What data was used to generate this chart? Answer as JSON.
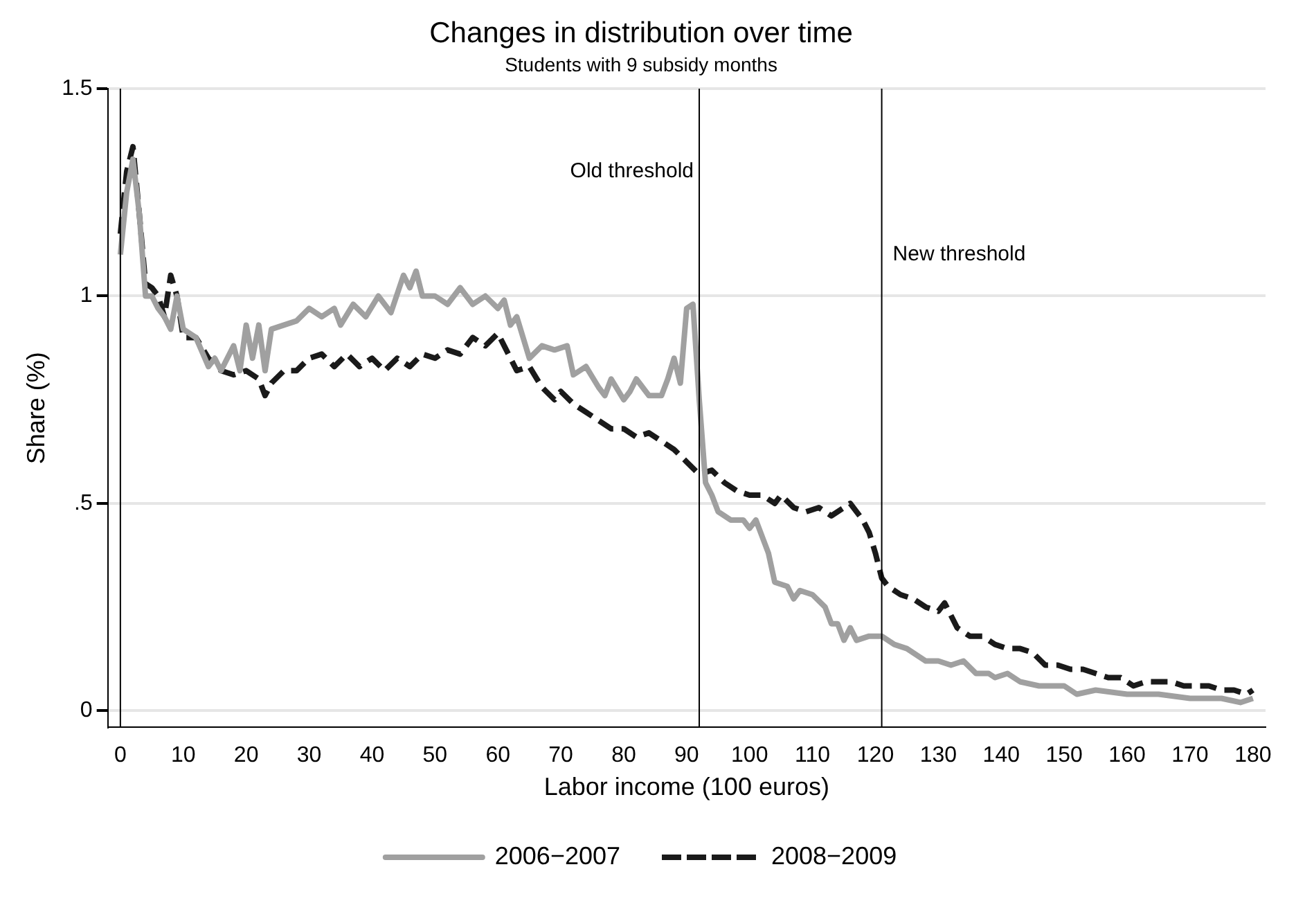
{
  "chart_data": {
    "type": "line",
    "title": "Changes in distribution over time",
    "subtitle": "Students with 9 subsidy months",
    "xlabel": "Labor income (100 euros)",
    "ylabel": "Share (%)",
    "xlim": [
      -2,
      182
    ],
    "xticks": [
      0,
      10,
      20,
      30,
      40,
      50,
      60,
      70,
      80,
      90,
      100,
      110,
      120,
      130,
      140,
      150,
      160,
      170,
      180
    ],
    "ylim": [
      -0.04,
      1.5
    ],
    "yticks": [
      0,
      {
        "value": 0.5,
        "label": ".5"
      },
      1,
      1.5
    ],
    "grid": "y",
    "legend": "bottom",
    "ref_lines": [
      {
        "axis": "x",
        "value": 0,
        "color": "#000000"
      },
      {
        "axis": "x",
        "value": 92,
        "label": "Old threshold",
        "color": "#000000"
      },
      {
        "axis": "x",
        "value": 121,
        "label": "New threshold",
        "color": "#000000"
      }
    ],
    "series": [
      {
        "name": "2006−2007",
        "color": "#a0a0a0",
        "line_style": "solid",
        "x": [
          0,
          1,
          2,
          3,
          4,
          5,
          6,
          7,
          8,
          9,
          10,
          12,
          14,
          15,
          16,
          18,
          19,
          20,
          21,
          22,
          23,
          24,
          26,
          28,
          30,
          32,
          34,
          35,
          37,
          39,
          41,
          43,
          45,
          46,
          47,
          48,
          50,
          52,
          54,
          56,
          58,
          60,
          61,
          62,
          63,
          65,
          67,
          69,
          71,
          72,
          74,
          76,
          77,
          78,
          80,
          81,
          82,
          84,
          86,
          87,
          88,
          89,
          90,
          91,
          92,
          93,
          94,
          95,
          97,
          99,
          100,
          101,
          103,
          104,
          106,
          107,
          108,
          110,
          112,
          113,
          114,
          115,
          116,
          117,
          119,
          121,
          123,
          125,
          127,
          128,
          130,
          132,
          134,
          136,
          138,
          139,
          141,
          143,
          146,
          150,
          152,
          155,
          160,
          165,
          170,
          175,
          178,
          180
        ],
        "values": [
          1.1,
          1.25,
          1.33,
          1.2,
          1.0,
          1.0,
          0.97,
          0.95,
          0.92,
          1.0,
          0.92,
          0.9,
          0.83,
          0.85,
          0.82,
          0.88,
          0.82,
          0.93,
          0.85,
          0.93,
          0.82,
          0.92,
          0.93,
          0.94,
          0.97,
          0.95,
          0.97,
          0.93,
          0.98,
          0.95,
          1.0,
          0.96,
          1.05,
          1.02,
          1.06,
          1.0,
          1.0,
          0.98,
          1.02,
          0.98,
          1.0,
          0.97,
          0.99,
          0.93,
          0.95,
          0.85,
          0.88,
          0.87,
          0.88,
          0.81,
          0.83,
          0.78,
          0.76,
          0.8,
          0.75,
          0.77,
          0.8,
          0.76,
          0.76,
          0.8,
          0.85,
          0.79,
          0.97,
          0.98,
          0.75,
          0.55,
          0.52,
          0.48,
          0.46,
          0.46,
          0.44,
          0.46,
          0.38,
          0.31,
          0.3,
          0.27,
          0.29,
          0.28,
          0.25,
          0.21,
          0.21,
          0.17,
          0.2,
          0.17,
          0.18,
          0.18,
          0.16,
          0.15,
          0.13,
          0.12,
          0.12,
          0.11,
          0.12,
          0.09,
          0.09,
          0.08,
          0.09,
          0.07,
          0.06,
          0.06,
          0.04,
          0.05,
          0.04,
          0.04,
          0.03,
          0.03,
          0.02,
          0.03
        ]
      },
      {
        "name": "2008−2009",
        "color": "#1a1a1a",
        "line_style": "dashed",
        "x": [
          0,
          1,
          2,
          3,
          4,
          5,
          6,
          7,
          8,
          9,
          10,
          12,
          14,
          16,
          18,
          20,
          22,
          23,
          24,
          26,
          28,
          30,
          32,
          34,
          36,
          38,
          40,
          42,
          44,
          46,
          48,
          50,
          52,
          54,
          56,
          58,
          60,
          61,
          63,
          65,
          67,
          69,
          70,
          72,
          74,
          76,
          78,
          80,
          82,
          84,
          86,
          88,
          90,
          92,
          94,
          96,
          98,
          100,
          102,
          104,
          105,
          107,
          109,
          111,
          113,
          115,
          116,
          118,
          119,
          120,
          121,
          122,
          124,
          126,
          128,
          130,
          131,
          133,
          135,
          137,
          139,
          141,
          143,
          145,
          147,
          149,
          151,
          153,
          155,
          157,
          159,
          161,
          163,
          165,
          167,
          169,
          171,
          173,
          175,
          177,
          179,
          180
        ],
        "values": [
          1.15,
          1.3,
          1.36,
          1.2,
          1.03,
          1.02,
          1.0,
          0.95,
          1.05,
          1.0,
          0.9,
          0.9,
          0.85,
          0.82,
          0.81,
          0.82,
          0.8,
          0.76,
          0.79,
          0.82,
          0.82,
          0.85,
          0.86,
          0.83,
          0.86,
          0.83,
          0.85,
          0.82,
          0.85,
          0.83,
          0.86,
          0.85,
          0.87,
          0.86,
          0.9,
          0.88,
          0.91,
          0.88,
          0.82,
          0.83,
          0.78,
          0.75,
          0.77,
          0.74,
          0.72,
          0.7,
          0.68,
          0.68,
          0.66,
          0.67,
          0.65,
          0.63,
          0.6,
          0.57,
          0.58,
          0.55,
          0.53,
          0.52,
          0.52,
          0.5,
          0.52,
          0.49,
          0.48,
          0.49,
          0.47,
          0.49,
          0.5,
          0.46,
          0.43,
          0.38,
          0.32,
          0.3,
          0.28,
          0.27,
          0.25,
          0.24,
          0.26,
          0.2,
          0.18,
          0.18,
          0.16,
          0.15,
          0.15,
          0.14,
          0.11,
          0.11,
          0.1,
          0.1,
          0.09,
          0.08,
          0.08,
          0.06,
          0.07,
          0.07,
          0.07,
          0.06,
          0.06,
          0.06,
          0.05,
          0.05,
          0.04,
          0.05
        ]
      }
    ]
  }
}
